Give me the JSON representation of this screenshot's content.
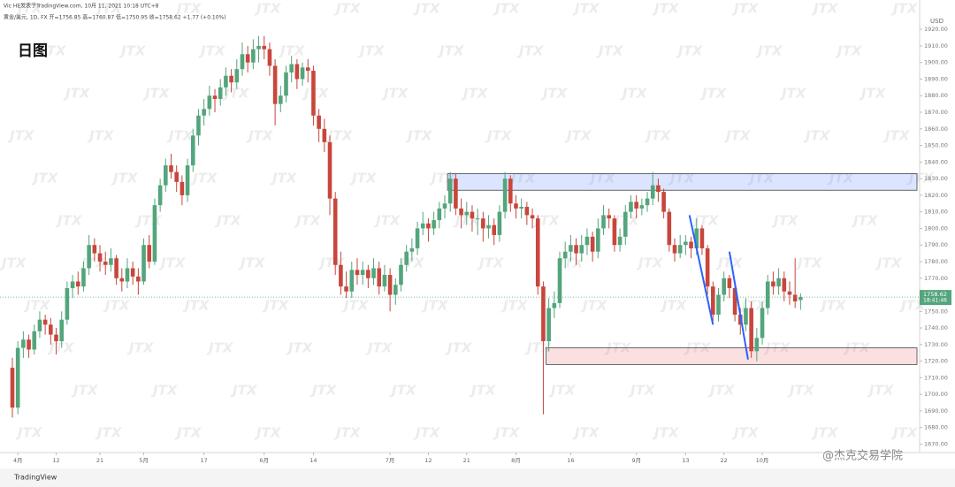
{
  "chart_data": {
    "type": "candlestick",
    "author_line": "Vic HE发表于TradingView.com, 10月 11, 2021 10:18 UTC+8",
    "legend_text": "黄金/美元, 1D, FX 开=1756.85 高=1760.87 低=1750.95 收=1758.62 +1.77 (+0.10%)",
    "period_label": "日图",
    "currency": "USD",
    "countdown": "18:41:46",
    "brand": "TradingView",
    "credit": "@杰克交易学院",
    "watermark": "JTX",
    "up_color": "#53a57c",
    "down_color": "#c8463c",
    "ylim": [
      1666,
      1927
    ],
    "yticks": [
      {
        "value": 1670,
        "label": "1670.00"
      },
      {
        "value": 1680,
        "label": "1680.00"
      },
      {
        "value": 1690,
        "label": "1690.00"
      },
      {
        "value": 1700,
        "label": "1700.00"
      },
      {
        "value": 1710,
        "label": "1710.00"
      },
      {
        "value": 1720,
        "label": "1720.00"
      },
      {
        "value": 1730,
        "label": "1730.00"
      },
      {
        "value": 1740,
        "label": "1740.00"
      },
      {
        "value": 1750,
        "label": "1750.00"
      },
      {
        "value": 1760,
        "label": "1760.00"
      },
      {
        "value": 1770,
        "label": "1770.00"
      },
      {
        "value": 1780,
        "label": "1780.00"
      },
      {
        "value": 1790,
        "label": "1790.00"
      },
      {
        "value": 1800,
        "label": "1800.00"
      },
      {
        "value": 1810,
        "label": "1810.00"
      },
      {
        "value": 1820,
        "label": "1820.00"
      },
      {
        "value": 1830,
        "label": "1830.00"
      },
      {
        "value": 1840,
        "label": "1840.00"
      },
      {
        "value": 1850,
        "label": "1850.00"
      },
      {
        "value": 1860,
        "label": "1860.00"
      },
      {
        "value": 1870,
        "label": "1870.00"
      },
      {
        "value": 1880,
        "label": "1880.00"
      },
      {
        "value": 1890,
        "label": "1890.00"
      },
      {
        "value": 1900,
        "label": "1900.00"
      },
      {
        "value": 1910,
        "label": "1910.00"
      },
      {
        "value": 1920,
        "label": "1920.00"
      }
    ],
    "xticks": [
      {
        "value": 1,
        "label": "4月"
      },
      {
        "value": 8,
        "label": "12"
      },
      {
        "value": 16,
        "label": "21"
      },
      {
        "value": 24,
        "label": "5月"
      },
      {
        "value": 35,
        "label": "17"
      },
      {
        "value": 46,
        "label": "6月"
      },
      {
        "value": 55,
        "label": "14"
      },
      {
        "value": 69,
        "label": "7月"
      },
      {
        "value": 76,
        "label": "12"
      },
      {
        "value": 83,
        "label": "21"
      },
      {
        "value": 92,
        "label": "8月"
      },
      {
        "value": 102,
        "label": "16"
      },
      {
        "value": 114,
        "label": "9月"
      },
      {
        "value": 123,
        "label": "13"
      },
      {
        "value": 130,
        "label": "22"
      },
      {
        "value": 137,
        "label": "10月"
      }
    ],
    "zones": [
      {
        "low": 1823,
        "high": 1833,
        "start": 79.5,
        "color": "#2962ff"
      },
      {
        "low": 1718,
        "high": 1728,
        "start": 97.5,
        "color": "#e04848"
      }
    ],
    "lines": [
      {
        "x": [
          123.7,
          128
        ],
        "y": [
          1808,
          1742
        ],
        "color": "#2962ff"
      },
      {
        "x": [
          131,
          134.4
        ],
        "y": [
          1786,
          1721
        ],
        "color": "#2962ff"
      }
    ],
    "ohlc": [
      [
        1716,
        1722,
        1686,
        1692
      ],
      [
        1692,
        1732,
        1688,
        1728
      ],
      [
        1728,
        1738,
        1722,
        1733
      ],
      [
        1733,
        1736,
        1722,
        1727
      ],
      [
        1727,
        1742,
        1724,
        1738
      ],
      [
        1738,
        1750,
        1734,
        1745
      ],
      [
        1745,
        1748,
        1736,
        1742
      ],
      [
        1742,
        1746,
        1730,
        1736
      ],
      [
        1736,
        1740,
        1724,
        1732
      ],
      [
        1732,
        1750,
        1728,
        1745
      ],
      [
        1745,
        1768,
        1742,
        1764
      ],
      [
        1764,
        1772,
        1758,
        1768
      ],
      [
        1768,
        1774,
        1760,
        1765
      ],
      [
        1765,
        1780,
        1762,
        1776
      ],
      [
        1776,
        1796,
        1772,
        1790
      ],
      [
        1790,
        1794,
        1780,
        1785
      ],
      [
        1785,
        1790,
        1774,
        1780
      ],
      [
        1780,
        1786,
        1772,
        1778
      ],
      [
        1778,
        1788,
        1774,
        1782
      ],
      [
        1782,
        1784,
        1766,
        1770
      ],
      [
        1770,
        1776,
        1762,
        1768
      ],
      [
        1768,
        1782,
        1764,
        1776
      ],
      [
        1776,
        1780,
        1766,
        1771
      ],
      [
        1771,
        1776,
        1760,
        1768
      ],
      [
        1768,
        1794,
        1766,
        1790
      ],
      [
        1790,
        1796,
        1776,
        1780
      ],
      [
        1780,
        1818,
        1778,
        1814
      ],
      [
        1814,
        1830,
        1810,
        1826
      ],
      [
        1826,
        1842,
        1822,
        1838
      ],
      [
        1838,
        1845,
        1830,
        1834
      ],
      [
        1834,
        1838,
        1822,
        1828
      ],
      [
        1828,
        1832,
        1814,
        1820
      ],
      [
        1820,
        1842,
        1816,
        1838
      ],
      [
        1838,
        1860,
        1834,
        1856
      ],
      [
        1856,
        1872,
        1850,
        1868
      ],
      [
        1868,
        1878,
        1862,
        1872
      ],
      [
        1872,
        1886,
        1868,
        1880
      ],
      [
        1880,
        1884,
        1870,
        1878
      ],
      [
        1878,
        1890,
        1874,
        1885
      ],
      [
        1885,
        1897,
        1880,
        1892
      ],
      [
        1892,
        1896,
        1882,
        1888
      ],
      [
        1888,
        1902,
        1884,
        1896
      ],
      [
        1896,
        1912,
        1892,
        1905
      ],
      [
        1905,
        1910,
        1894,
        1900
      ],
      [
        1900,
        1914,
        1896,
        1908
      ],
      [
        1908,
        1916,
        1900,
        1910
      ],
      [
        1910,
        1916,
        1902,
        1908
      ],
      [
        1908,
        1912,
        1892,
        1898
      ],
      [
        1898,
        1902,
        1862,
        1875
      ],
      [
        1875,
        1886,
        1870,
        1880
      ],
      [
        1880,
        1898,
        1876,
        1894
      ],
      [
        1894,
        1904,
        1888,
        1899
      ],
      [
        1899,
        1902,
        1884,
        1890
      ],
      [
        1890,
        1900,
        1886,
        1897
      ],
      [
        1897,
        1902,
        1888,
        1895
      ],
      [
        1895,
        1898,
        1862,
        1868
      ],
      [
        1868,
        1872,
        1852,
        1860
      ],
      [
        1860,
        1866,
        1846,
        1852
      ],
      [
        1852,
        1856,
        1808,
        1818
      ],
      [
        1818,
        1822,
        1772,
        1778
      ],
      [
        1778,
        1786,
        1760,
        1765
      ],
      [
        1765,
        1774,
        1758,
        1762
      ],
      [
        1762,
        1780,
        1758,
        1775
      ],
      [
        1775,
        1782,
        1766,
        1772
      ],
      [
        1772,
        1780,
        1766,
        1775
      ],
      [
        1775,
        1778,
        1764,
        1770
      ],
      [
        1770,
        1782,
        1766,
        1776
      ],
      [
        1776,
        1780,
        1760,
        1765
      ],
      [
        1765,
        1778,
        1762,
        1772
      ],
      [
        1772,
        1776,
        1750,
        1760
      ],
      [
        1760,
        1770,
        1754,
        1766
      ],
      [
        1766,
        1782,
        1762,
        1778
      ],
      [
        1778,
        1790,
        1774,
        1786
      ],
      [
        1786,
        1794,
        1780,
        1788
      ],
      [
        1788,
        1804,
        1784,
        1800
      ],
      [
        1800,
        1810,
        1796,
        1803
      ],
      [
        1803,
        1806,
        1792,
        1800
      ],
      [
        1800,
        1810,
        1796,
        1805
      ],
      [
        1805,
        1816,
        1800,
        1812
      ],
      [
        1812,
        1820,
        1806,
        1815
      ],
      [
        1815,
        1834,
        1810,
        1830
      ],
      [
        1830,
        1833,
        1808,
        1812
      ],
      [
        1812,
        1818,
        1800,
        1808
      ],
      [
        1808,
        1816,
        1802,
        1810
      ],
      [
        1810,
        1814,
        1798,
        1806
      ],
      [
        1806,
        1812,
        1796,
        1806
      ],
      [
        1806,
        1810,
        1792,
        1800
      ],
      [
        1800,
        1808,
        1794,
        1802
      ],
      [
        1802,
        1806,
        1790,
        1796
      ],
      [
        1796,
        1814,
        1792,
        1810
      ],
      [
        1810,
        1834,
        1806,
        1830
      ],
      [
        1830,
        1832,
        1810,
        1815
      ],
      [
        1815,
        1820,
        1806,
        1812
      ],
      [
        1812,
        1818,
        1806,
        1813
      ],
      [
        1813,
        1816,
        1802,
        1808
      ],
      [
        1808,
        1812,
        1800,
        1806
      ],
      [
        1806,
        1808,
        1760,
        1765
      ],
      [
        1765,
        1768,
        1688,
        1732
      ],
      [
        1732,
        1758,
        1726,
        1752
      ],
      [
        1752,
        1762,
        1746,
        1755
      ],
      [
        1755,
        1786,
        1752,
        1782
      ],
      [
        1782,
        1792,
        1776,
        1786
      ],
      [
        1786,
        1796,
        1780,
        1790
      ],
      [
        1790,
        1794,
        1778,
        1785
      ],
      [
        1785,
        1796,
        1780,
        1790
      ],
      [
        1790,
        1800,
        1784,
        1795
      ],
      [
        1795,
        1798,
        1780,
        1786
      ],
      [
        1786,
        1806,
        1782,
        1800
      ],
      [
        1800,
        1814,
        1796,
        1808
      ],
      [
        1808,
        1812,
        1800,
        1806
      ],
      [
        1806,
        1808,
        1786,
        1790
      ],
      [
        1790,
        1800,
        1786,
        1795
      ],
      [
        1795,
        1814,
        1790,
        1810
      ],
      [
        1810,
        1820,
        1806,
        1816
      ],
      [
        1816,
        1820,
        1806,
        1812
      ],
      [
        1812,
        1818,
        1808,
        1814
      ],
      [
        1814,
        1822,
        1810,
        1818
      ],
      [
        1818,
        1834,
        1814,
        1826
      ],
      [
        1826,
        1830,
        1816,
        1822
      ],
      [
        1822,
        1824,
        1806,
        1810
      ],
      [
        1810,
        1812,
        1786,
        1790
      ],
      [
        1790,
        1794,
        1780,
        1785
      ],
      [
        1785,
        1796,
        1782,
        1790
      ],
      [
        1790,
        1796,
        1784,
        1792
      ],
      [
        1792,
        1795,
        1782,
        1788
      ],
      [
        1788,
        1806,
        1784,
        1800
      ],
      [
        1800,
        1802,
        1784,
        1788
      ],
      [
        1788,
        1790,
        1760,
        1765
      ],
      [
        1765,
        1768,
        1744,
        1748
      ],
      [
        1748,
        1764,
        1744,
        1760
      ],
      [
        1760,
        1774,
        1756,
        1770
      ],
      [
        1770,
        1772,
        1758,
        1764
      ],
      [
        1764,
        1766,
        1744,
        1748
      ],
      [
        1748,
        1752,
        1736,
        1742
      ],
      [
        1742,
        1758,
        1738,
        1752
      ],
      [
        1752,
        1756,
        1722,
        1726
      ],
      [
        1726,
        1740,
        1720,
        1734
      ],
      [
        1734,
        1756,
        1730,
        1752
      ],
      [
        1752,
        1772,
        1748,
        1768
      ],
      [
        1768,
        1774,
        1760,
        1765
      ],
      [
        1765,
        1776,
        1760,
        1770
      ],
      [
        1770,
        1774,
        1756,
        1762
      ],
      [
        1762,
        1768,
        1754,
        1760
      ],
      [
        1760,
        1782,
        1752,
        1756
      ],
      [
        1756.85,
        1760.87,
        1750.95,
        1758.62
      ]
    ]
  }
}
